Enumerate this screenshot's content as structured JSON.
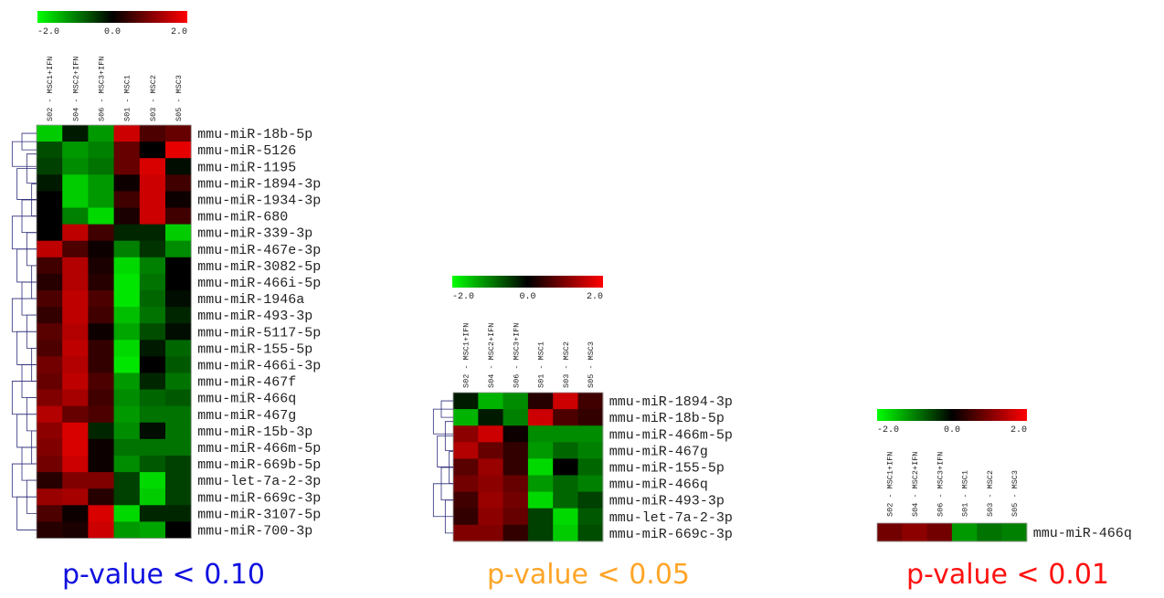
{
  "legend": {
    "min_label": "-2.0",
    "mid_label": "0.0",
    "max_label": "2.0",
    "colors": {
      "low": "#00ff00",
      "mid": "#000000",
      "high": "#ff0000"
    }
  },
  "chart_data": [
    {
      "type": "heatmap",
      "caption": "p-value < 0.10",
      "caption_color": "#1010e0",
      "samples": [
        "S02 - MSC1+IFN",
        "S04 - MSC2+IFN",
        "S06 - MSC3+IFN",
        "S01 - MSC1",
        "S03 - MSC2",
        "S05 - MSC3"
      ],
      "genes": [
        "mmu-miR-18b-5p",
        "mmu-miR-5126",
        "mmu-miR-1195",
        "mmu-miR-1894-3p",
        "mmu-miR-1934-3p",
        "mmu-miR-680",
        "mmu-miR-339-3p",
        "mmu-miR-467e-3p",
        "mmu-miR-3082-5p",
        "mmu-miR-466i-5p",
        "mmu-miR-1946a",
        "mmu-miR-493-3p",
        "mmu-miR-5117-5p",
        "mmu-miR-155-5p",
        "mmu-miR-466i-3p",
        "mmu-miR-467f",
        "mmu-miR-466q",
        "mmu-miR-467g",
        "mmu-miR-15b-3p",
        "mmu-miR-466m-5p",
        "mmu-miR-669b-5p",
        "mmu-let-7a-2-3p",
        "mmu-miR-669c-3p",
        "mmu-miR-3107-5p",
        "mmu-miR-700-3p"
      ],
      "values": [
        [
          -1.6,
          -0.2,
          -1.2,
          1.6,
          0.6,
          0.8
        ],
        [
          -0.6,
          -1.2,
          -1.0,
          0.8,
          0.0,
          1.8
        ],
        [
          -0.5,
          -1.1,
          -0.9,
          0.8,
          1.7,
          -0.1
        ],
        [
          -0.2,
          -1.6,
          -1.2,
          0.1,
          1.6,
          0.5
        ],
        [
          0.0,
          -1.6,
          -1.2,
          0.5,
          1.6,
          0.1
        ],
        [
          0.0,
          -1.0,
          -1.7,
          0.2,
          1.6,
          0.5
        ],
        [
          0.0,
          1.5,
          0.5,
          -0.3,
          -0.3,
          -1.6
        ],
        [
          1.5,
          0.6,
          0.1,
          -1.0,
          -0.4,
          -1.1
        ],
        [
          0.5,
          1.4,
          0.2,
          -1.7,
          -1.0,
          0.0
        ],
        [
          0.3,
          1.4,
          0.3,
          -1.8,
          -0.9,
          0.0
        ],
        [
          0.6,
          1.5,
          0.6,
          -1.8,
          -0.8,
          -0.1
        ],
        [
          0.4,
          1.5,
          0.5,
          -1.5,
          -0.9,
          -0.3
        ],
        [
          0.7,
          1.4,
          0.1,
          -1.3,
          -0.6,
          -0.1
        ],
        [
          0.6,
          1.5,
          0.4,
          -1.7,
          -0.2,
          -0.8
        ],
        [
          0.9,
          1.4,
          0.4,
          -1.8,
          0.0,
          -0.7
        ],
        [
          0.8,
          1.5,
          0.6,
          -1.2,
          -0.3,
          -0.9
        ],
        [
          1.0,
          1.3,
          0.5,
          -1.1,
          -0.8,
          -0.7
        ],
        [
          1.4,
          0.8,
          0.6,
          -1.2,
          -0.9,
          -0.9
        ],
        [
          1.1,
          1.7,
          -0.3,
          -1.1,
          -0.1,
          -0.9
        ],
        [
          1.0,
          1.7,
          0.1,
          -0.9,
          -0.9,
          -0.9
        ],
        [
          0.9,
          1.6,
          0.1,
          -1.1,
          -0.7,
          -0.5
        ],
        [
          0.3,
          1.0,
          1.0,
          -0.5,
          -1.7,
          -0.5
        ],
        [
          1.2,
          1.3,
          0.3,
          -0.5,
          -1.6,
          -0.5
        ],
        [
          0.6,
          0.1,
          1.7,
          -1.7,
          -0.3,
          -0.3
        ],
        [
          0.3,
          0.2,
          1.6,
          -1.2,
          -1.3,
          0.0
        ]
      ]
    },
    {
      "type": "heatmap",
      "caption": "p-value < 0.05",
      "caption_color": "#ffa528",
      "samples": [
        "S02 - MSC1+IFN",
        "S04 - MSC2+IFN",
        "S06 - MSC3+IFN",
        "S01 - MSC1",
        "S03 - MSC2",
        "S05 - MSC3"
      ],
      "genes": [
        "mmu-miR-1894-3p",
        "mmu-miR-18b-5p",
        "mmu-miR-466m-5p",
        "mmu-miR-467g",
        "mmu-miR-155-5p",
        "mmu-miR-466q",
        "mmu-miR-493-3p",
        "mmu-let-7a-2-3p",
        "mmu-miR-669c-3p"
      ],
      "values": [
        [
          -0.2,
          -1.4,
          -1.1,
          0.3,
          1.6,
          0.5
        ],
        [
          -1.4,
          -0.2,
          -1.0,
          1.6,
          0.6,
          0.4
        ],
        [
          1.1,
          1.6,
          0.1,
          -1.1,
          -1.1,
          -1.1
        ],
        [
          1.4,
          0.8,
          0.4,
          -1.2,
          -0.8,
          -1.0
        ],
        [
          0.7,
          1.2,
          0.4,
          -1.7,
          0.0,
          -0.8
        ],
        [
          0.9,
          1.1,
          0.8,
          -1.2,
          -0.8,
          -1.0
        ],
        [
          0.5,
          1.2,
          0.9,
          -1.7,
          -0.8,
          -0.5
        ],
        [
          0.4,
          1.1,
          0.8,
          -0.5,
          -1.7,
          -0.7
        ],
        [
          1.0,
          1.0,
          0.4,
          -0.5,
          -1.6,
          -0.6
        ]
      ]
    },
    {
      "type": "heatmap",
      "caption": "p-value < 0.01",
      "caption_color": "#ff1010",
      "samples": [
        "S02 - MSC1+IFN",
        "S04 - MSC2+IFN",
        "S06 - MSC3+IFN",
        "S01 - MSC1",
        "S03 - MSC2",
        "S05 - MSC3"
      ],
      "genes": [
        "mmu-miR-466q"
      ],
      "values": [
        [
          0.9,
          1.1,
          0.9,
          -1.2,
          -0.9,
          -1.0
        ]
      ]
    }
  ]
}
